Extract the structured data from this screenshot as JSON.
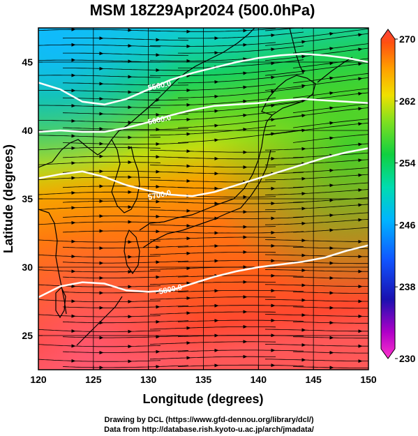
{
  "chart_data": {
    "type": "map",
    "title": "MSM 18Z29Apr2024 (500.0hPa)",
    "xlabel": "Longitude (degrees)",
    "ylabel": "Latitude  (degrees)",
    "xlim": [
      120,
      150
    ],
    "ylim": [
      22.5,
      47.5
    ],
    "x_ticks": [
      "120",
      "125",
      "130",
      "135",
      "140",
      "145",
      "150"
    ],
    "y_ticks": [
      "25",
      "30",
      "35",
      "40",
      "45"
    ],
    "colorbar": {
      "min": 230,
      "max": 270,
      "ticks": [
        "230",
        "238",
        "246",
        "254",
        "262",
        "270"
      ]
    },
    "contours": [
      {
        "label": "5500.0",
        "points": [
          [
            120,
            43.5
          ],
          [
            122,
            43.0
          ],
          [
            124,
            42.1
          ],
          [
            126,
            41.9
          ],
          [
            128,
            42.3
          ],
          [
            130,
            43.0
          ],
          [
            132,
            43.7
          ],
          [
            134,
            44.2
          ],
          [
            136,
            44.6
          ],
          [
            138,
            45.0
          ],
          [
            140,
            45.3
          ],
          [
            142,
            45.5
          ],
          [
            144,
            45.6
          ],
          [
            146,
            45.5
          ],
          [
            148,
            45.3
          ],
          [
            150,
            45.0
          ]
        ],
        "label_at": [
          131,
          43.3
        ]
      },
      {
        "label": "5600.0",
        "points": [
          [
            120,
            39.9
          ],
          [
            122,
            40.0
          ],
          [
            124,
            39.9
          ],
          [
            126,
            39.9
          ],
          [
            128,
            40.2
          ],
          [
            130,
            40.6
          ],
          [
            132,
            41.1
          ],
          [
            134,
            41.5
          ],
          [
            136,
            41.8
          ],
          [
            138,
            41.9
          ],
          [
            140,
            42.0
          ],
          [
            142,
            42.2
          ],
          [
            144,
            42.3
          ],
          [
            146,
            42.2
          ],
          [
            148,
            42.1
          ],
          [
            150,
            42.0
          ]
        ],
        "label_at": [
          131,
          40.8
        ]
      },
      {
        "label": "5700.0",
        "points": [
          [
            120,
            36.5
          ],
          [
            122,
            36.8
          ],
          [
            124,
            37.0
          ],
          [
            126,
            36.6
          ],
          [
            128,
            36.0
          ],
          [
            130,
            35.6
          ],
          [
            132,
            35.3
          ],
          [
            134,
            35.2
          ],
          [
            136,
            35.5
          ],
          [
            138,
            36.0
          ],
          [
            140,
            36.5
          ],
          [
            142,
            37.0
          ],
          [
            144,
            37.5
          ],
          [
            146,
            38.0
          ],
          [
            148,
            38.4
          ],
          [
            150,
            38.7
          ]
        ],
        "label_at": [
          131,
          35.3
        ]
      },
      {
        "label": "5800.0",
        "points": [
          [
            120,
            27.8
          ],
          [
            122,
            28.6
          ],
          [
            124,
            28.9
          ],
          [
            126,
            28.8
          ],
          [
            128,
            28.3
          ],
          [
            130,
            28.2
          ],
          [
            132,
            28.3
          ],
          [
            134,
            28.8
          ],
          [
            136,
            29.3
          ],
          [
            138,
            29.7
          ],
          [
            140,
            30.0
          ],
          [
            142,
            30.2
          ],
          [
            144,
            30.4
          ],
          [
            146,
            30.7
          ],
          [
            148,
            31.2
          ],
          [
            150,
            31.6
          ]
        ],
        "label_at": [
          132,
          28.4
        ]
      }
    ]
  },
  "credits": {
    "line1": "Drawing by DCL (https://www.gfd-dennou.org/library/dcl/)",
    "line2": "Data from http://database.rish.kyoto-u.ac.jp/arch/jmadata/"
  }
}
